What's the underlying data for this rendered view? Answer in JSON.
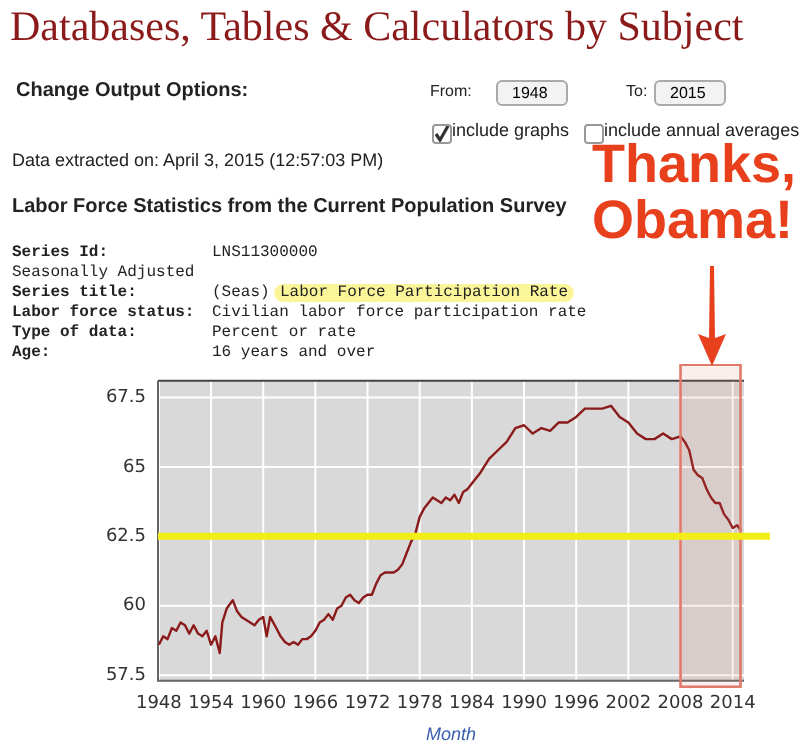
{
  "chart_data": {
    "type": "line",
    "title": "Databases, Tables & Calculators by Subject",
    "xlabel": "Month",
    "annotations": [
      "Change Output Options:",
      "From:",
      "1948",
      "To:",
      "2015",
      "include graphs",
      "include annual averages",
      "Data extracted on: April 3, 2015 (12:57:03 PM)",
      "Labor Force Statistics from the Current Population Survey",
      "Series Id:",
      "LNS11300000",
      "Seasonally Adjusted",
      "Series title:",
      "(Seas)",
      "Labor Force Participation Rate",
      "Labor force status:",
      "Civilian labor force participation rate",
      "Type of data:",
      "Percent or rate",
      "Age:",
      "16 years and over",
      "Thanks, Obama!"
    ],
    "x": [
      1948,
      1948.5,
      1949,
      1949.5,
      1950,
      1950.5,
      1951,
      1951.5,
      1952,
      1952.5,
      1953,
      1953.5,
      1954,
      1954.5,
      1955,
      1955.3,
      1955.8,
      1956.5,
      1957,
      1957.5,
      1958,
      1958.5,
      1959,
      1959.5,
      1960,
      1960.4,
      1960.8,
      1961.5,
      1962,
      1962.5,
      1963,
      1963.5,
      1964,
      1964.5,
      1965,
      1965.5,
      1966,
      1966.5,
      1967,
      1967.5,
      1968,
      1968.5,
      1969,
      1969.5,
      1970,
      1970.5,
      1971,
      1971.5,
      1972,
      1972.5,
      1973,
      1973.5,
      1974,
      1974.5,
      1975,
      1975.5,
      1976,
      1976.5,
      1977,
      1977.5,
      1978,
      1978.5,
      1979,
      1979.5,
      1980,
      1980.5,
      1981,
      1981.5,
      1982,
      1982.5,
      1983,
      1983.5,
      1984,
      1985,
      1986,
      1987,
      1988,
      1989,
      1990,
      1991,
      1992,
      1993,
      1994,
      1995,
      1996,
      1997,
      1998,
      1999,
      2000,
      2001,
      2002,
      2003,
      2004,
      2005,
      2006,
      2007,
      2008,
      2008.5,
      2009,
      2009.5,
      2010,
      2010.5,
      2011,
      2011.5,
      2012,
      2012.5,
      2013,
      2013.5,
      2014,
      2014.5,
      2015
    ],
    "series": [
      {
        "color": "#8b1a1a",
        "values": [
          58.6,
          58.9,
          58.8,
          59.2,
          59.1,
          59.4,
          59.3,
          59.0,
          59.3,
          59.0,
          58.9,
          59.1,
          58.6,
          58.9,
          58.3,
          59.4,
          59.9,
          60.2,
          59.8,
          59.6,
          59.5,
          59.4,
          59.3,
          59.5,
          59.6,
          58.9,
          59.6,
          59.2,
          58.9,
          58.7,
          58.6,
          58.7,
          58.6,
          58.8,
          58.8,
          58.9,
          59.1,
          59.4,
          59.5,
          59.7,
          59.5,
          59.9,
          60.0,
          60.3,
          60.4,
          60.2,
          60.1,
          60.3,
          60.4,
          60.4,
          60.8,
          61.1,
          61.2,
          61.2,
          61.2,
          61.3,
          61.5,
          61.9,
          62.3,
          62.6,
          63.2,
          63.5,
          63.7,
          63.9,
          63.8,
          63.7,
          63.9,
          63.8,
          64.0,
          63.7,
          64.1,
          64.2,
          64.4,
          64.8,
          65.3,
          65.6,
          65.9,
          66.4,
          66.5,
          66.2,
          66.4,
          66.3,
          66.6,
          66.6,
          66.8,
          67.1,
          67.1,
          67.1,
          67.2,
          66.8,
          66.6,
          66.2,
          66.0,
          66.0,
          66.2,
          66.0,
          66.1,
          65.9,
          65.6,
          64.9,
          64.7,
          64.6,
          64.2,
          63.9,
          63.7,
          63.7,
          63.3,
          63.1,
          62.8,
          62.9,
          62.7
        ]
      }
    ],
    "xlim": [
      1947.9,
      2015.3
    ],
    "ylim": [
      57.3,
      68.1
    ],
    "xticks": [
      1948,
      1954,
      1960,
      1966,
      1972,
      1978,
      1984,
      1990,
      1996,
      2002,
      2008,
      2014
    ],
    "yticks": [
      57.5,
      60,
      62.5,
      65,
      67.5
    ],
    "grid": true,
    "legend": false,
    "marker": "none",
    "line_style": "solid",
    "ref_lines": [
      {
        "axis": "y",
        "value": 62.5,
        "color": "#f2ec17"
      }
    ],
    "bands": [
      {
        "axis": "x",
        "from": 2008,
        "to": 2014.9,
        "color": "#e07a6a"
      }
    ]
  }
}
